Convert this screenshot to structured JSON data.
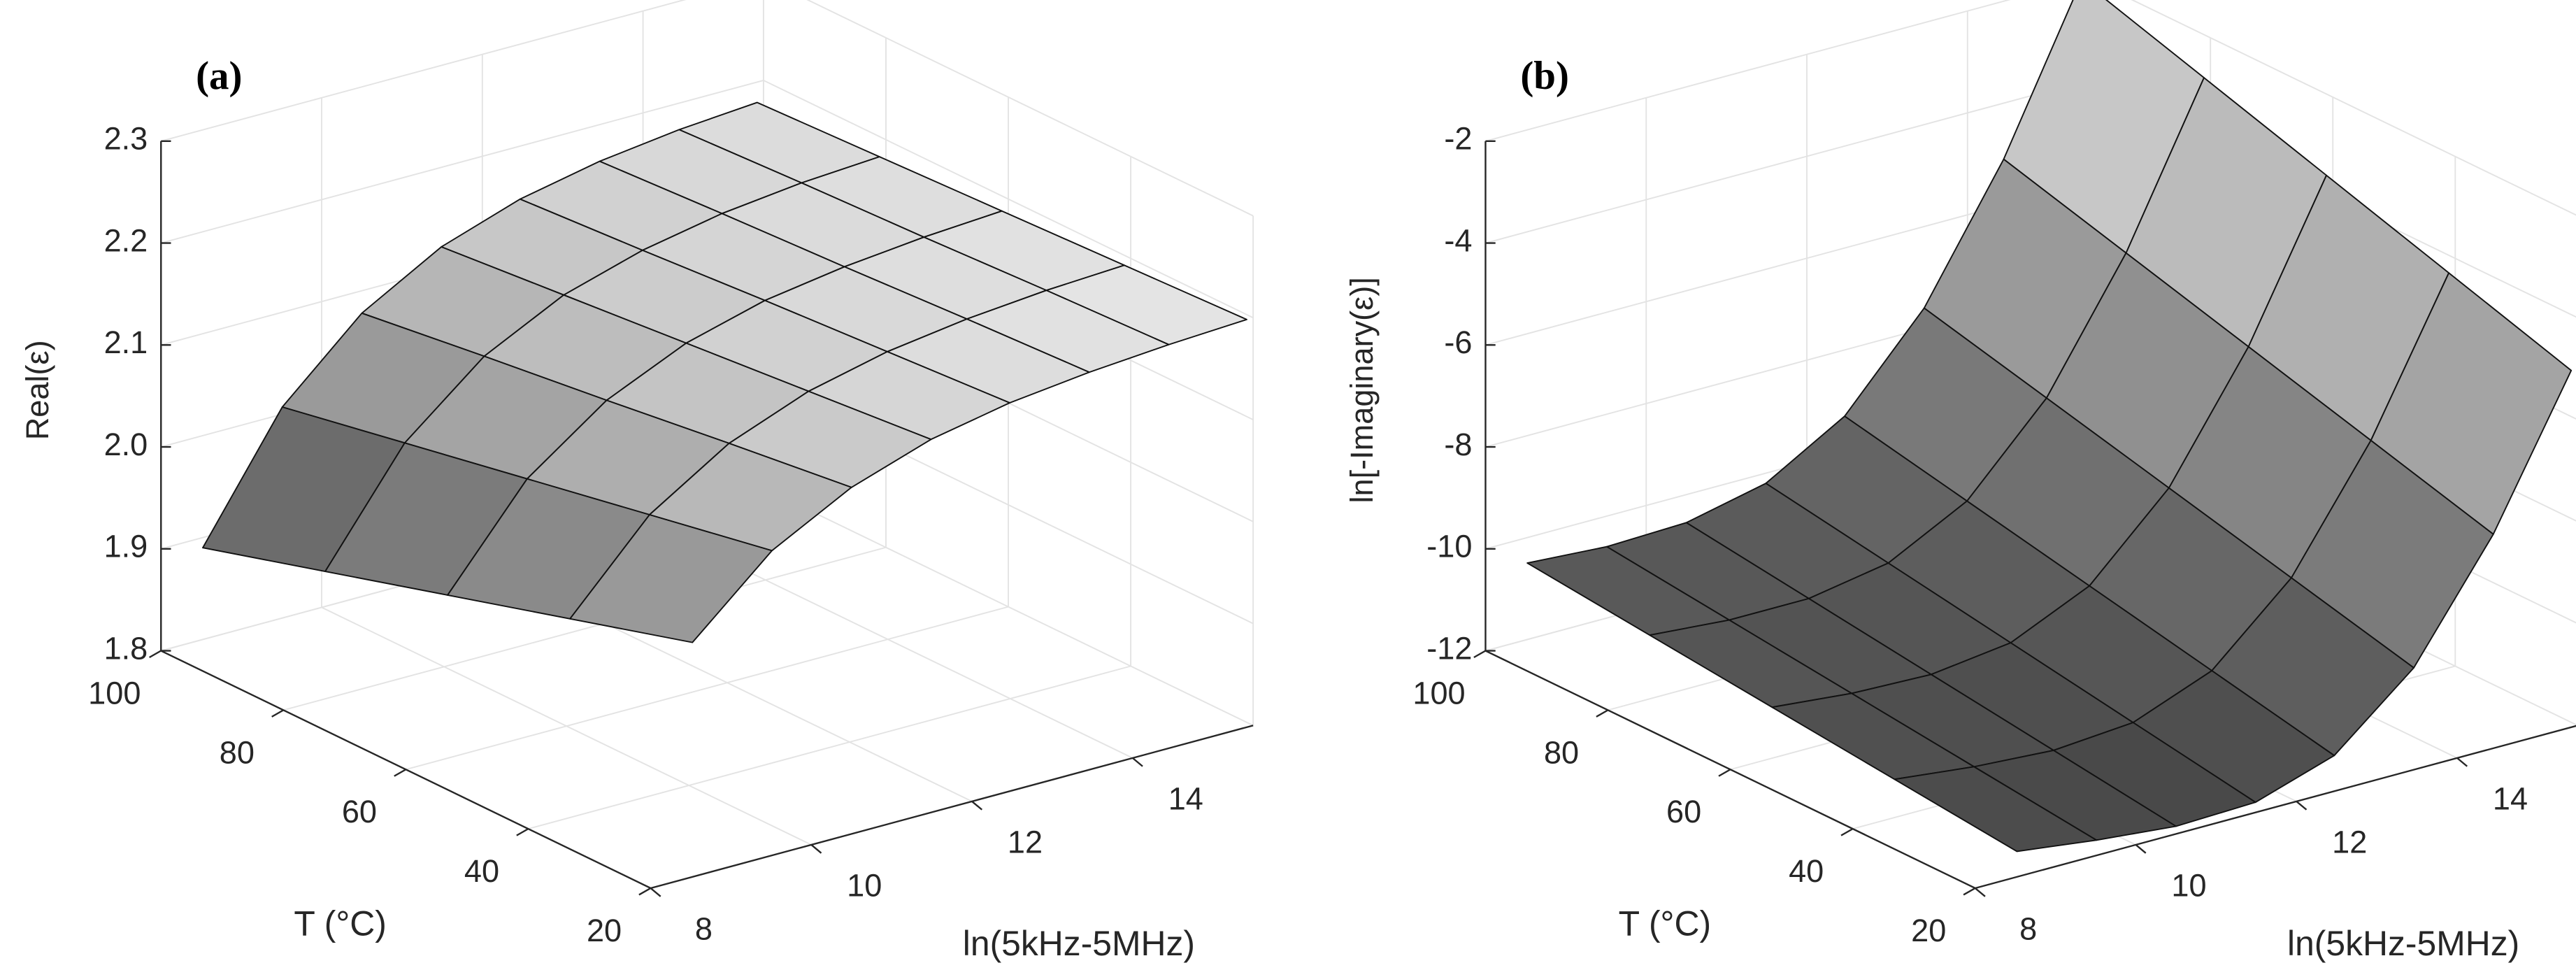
{
  "chart_data": [
    {
      "type": "surface",
      "panel": "(a)",
      "zlabel": "Real(ε)",
      "xlabel": "ln(5kHz-5MHz)",
      "ylabel": "T (°C)",
      "colormap": "gray",
      "grid": true,
      "x": [
        8.52,
        9.51,
        10.5,
        11.49,
        12.47,
        13.46,
        14.45,
        15.42
      ],
      "y": [
        20,
        40,
        60,
        80,
        100
      ],
      "values": [
        [
          2.03,
          2.099,
          2.14,
          2.166,
          2.181,
          2.19,
          2.196,
          2.2
        ],
        [
          1.995,
          2.076,
          2.125,
          2.155,
          2.173,
          2.184,
          2.191,
          2.195
        ],
        [
          1.96,
          2.053,
          2.109,
          2.144,
          2.165,
          2.177,
          2.185,
          2.19
        ],
        [
          1.925,
          2.03,
          2.094,
          2.133,
          2.156,
          2.171,
          2.18,
          2.185
        ],
        [
          1.89,
          2.007,
          2.078,
          2.122,
          2.148,
          2.164,
          2.174,
          2.18
        ]
      ],
      "xlim": [
        8,
        15.5
      ],
      "xticks": [
        8,
        10,
        12,
        14
      ],
      "ylim": [
        20,
        100
      ],
      "yticks": [
        20,
        40,
        60,
        80,
        100
      ],
      "zlim": [
        1.8,
        2.3
      ],
      "zticks": [
        1.8,
        1.9,
        {
          "value": 2,
          "label": "2.0"
        },
        2.1,
        2.2,
        2.3
      ]
    },
    {
      "type": "surface",
      "panel": "(b)",
      "zlabel": "ln[-Imaginary(ε)]",
      "xlabel": "ln(5kHz-5MHz)",
      "ylabel": "T (°C)",
      "colormap": "gray",
      "grid": true,
      "x": [
        8.52,
        9.51,
        10.5,
        11.49,
        12.47,
        13.46,
        14.45,
        15.42
      ],
      "y": [
        20,
        40,
        60,
        80,
        100
      ],
      "values": [
        [
          -11.5,
          -11.7,
          -11.85,
          -11.8,
          -11.3,
          -10.0,
          -7.8,
          -5.0
        ],
        [
          -11.25,
          -11.425,
          -11.525,
          -11.4,
          -10.8,
          -9.4,
          -7.125,
          -4.25
        ],
        [
          -11.0,
          -11.15,
          -11.2,
          -11.0,
          -10.3,
          -8.8,
          -6.45,
          -3.5
        ],
        [
          -10.75,
          -10.875,
          -10.875,
          -10.6,
          -9.8,
          -8.2,
          -5.775,
          -2.75
        ],
        [
          -10.5,
          -10.6,
          -10.55,
          -10.2,
          -9.3,
          -7.6,
          -5.1,
          -2.0
        ]
      ],
      "xlim": [
        8,
        15.5
      ],
      "xticks": [
        8,
        10,
        12,
        14
      ],
      "ylim": [
        20,
        100
      ],
      "yticks": [
        20,
        40,
        60,
        80,
        100
      ],
      "zlim": [
        -12,
        -2
      ],
      "zticks": [
        -12,
        -10,
        -8,
        -6,
        -4,
        -2
      ]
    }
  ]
}
